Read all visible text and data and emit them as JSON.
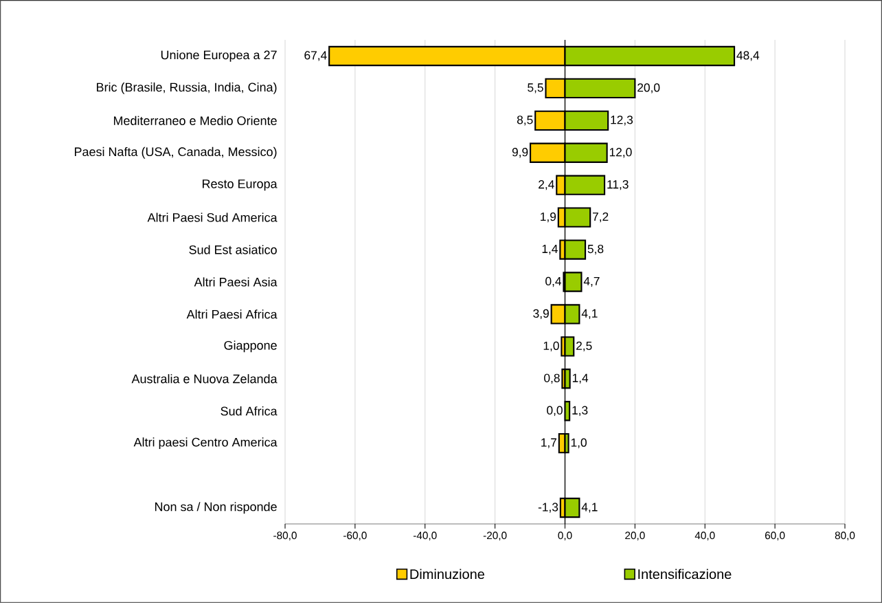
{
  "chart_data": {
    "type": "bar",
    "orientation": "horizontal",
    "categories": [
      "Unione Europea a 27",
      "Bric (Brasile, Russia, India, Cina)",
      "Mediterraneo e Medio Oriente",
      "Paesi Nafta (USA, Canada, Messico)",
      "Resto Europa",
      "Altri Paesi Sud America",
      "Sud Est asiatico",
      "Altri Paesi Asia",
      "Altri Paesi Africa",
      "Giappone",
      "Australia e Nuova Zelanda",
      "Sud Africa",
      "Altri paesi Centro America",
      null,
      "Non sa / Non risponde"
    ],
    "series": [
      {
        "name": "Diminuzione",
        "color": "#ffcc00",
        "values": [
          67.4,
          5.5,
          8.5,
          9.9,
          2.4,
          1.9,
          1.4,
          0.4,
          3.9,
          1.0,
          0.8,
          0.0,
          1.7,
          null,
          -1.3
        ],
        "base": [
          -67.4,
          -5.5,
          -8.5,
          -9.9,
          -2.4,
          -1.9,
          -1.4,
          -0.4,
          -3.9,
          -1.0,
          -0.8,
          null,
          -1.7,
          null,
          0
        ],
        "value_labels": [
          "67,4",
          "5,5",
          "8,5",
          "9,9",
          "2,4",
          "1,9",
          "1,4",
          "0,4",
          "3,9",
          "1,0",
          "0,8",
          "0,0",
          "1,7",
          null,
          "-1,3"
        ]
      },
      {
        "name": "Intensificazione",
        "color": "#99cc00",
        "values": [
          48.4,
          20.0,
          12.3,
          12.0,
          11.3,
          7.2,
          5.8,
          4.7,
          4.1,
          2.5,
          1.4,
          1.3,
          1.0,
          null,
          4.1
        ],
        "value_labels": [
          "48,4",
          "20,0",
          "12,3",
          "12,0",
          "11,3",
          "7,2",
          "5,8",
          "4,7",
          "4,1",
          "2,5",
          "1,4",
          "1,3",
          "1,0",
          null,
          "4,1"
        ]
      }
    ],
    "xlim": [
      -80,
      80
    ],
    "xticks": [
      {
        "value": -80,
        "label": "-80,0"
      },
      {
        "value": -60,
        "label": "-60,0"
      },
      {
        "value": -40,
        "label": "-40,0"
      },
      {
        "value": -20,
        "label": "-20,0"
      },
      {
        "value": 0,
        "label": "0,0"
      },
      {
        "value": 20,
        "label": "20,0"
      },
      {
        "value": 40,
        "label": "40,0"
      },
      {
        "value": 60,
        "label": "60,0"
      },
      {
        "value": 80,
        "label": "80,0"
      }
    ],
    "grid": "x",
    "legend": "bottom"
  }
}
